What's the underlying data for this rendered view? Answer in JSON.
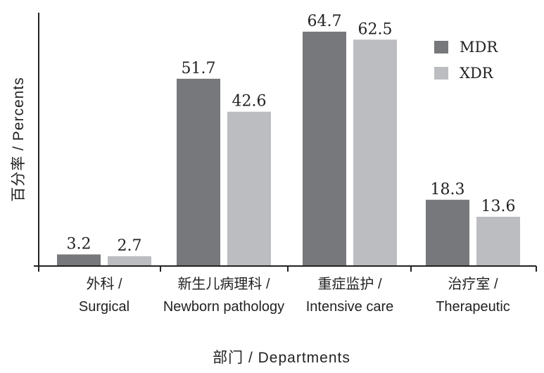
{
  "chart_data": {
    "type": "bar",
    "categories": [
      [
        "外科 /",
        "Surgical"
      ],
      [
        "新生儿病理科 /",
        "Newborn pathology"
      ],
      [
        "重症监护 /",
        "Intensive care"
      ],
      [
        "治疗室 /",
        "Therapeutic"
      ]
    ],
    "series": [
      {
        "name": "MDR",
        "values": [
          3.2,
          51.7,
          64.7,
          18.3
        ],
        "color": "#77787b"
      },
      {
        "name": "XDR",
        "values": [
          2.7,
          42.6,
          62.5,
          13.6
        ],
        "color": "#bcbdc0"
      }
    ],
    "value_labels": {
      "MDR": [
        "3.2",
        "51.7",
        "64.7",
        "18.3"
      ],
      "XDR": [
        "2.7",
        "42.6",
        "62.5",
        "13.6"
      ]
    },
    "title": "",
    "xlabel": "部门 / Departments",
    "ylabel": "百分率 / Percents",
    "ylim": [
      0,
      70
    ],
    "grid": false,
    "legend_position": "top-right"
  }
}
